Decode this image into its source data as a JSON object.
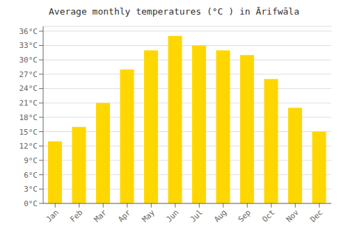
{
  "chart_data": {
    "type": "bar",
    "title": "Average monthly temperatures (°C ) in Ārifwāla",
    "categories": [
      "Jan",
      "Feb",
      "Mar",
      "Apr",
      "May",
      "Jun",
      "Jul",
      "Aug",
      "Sep",
      "Oct",
      "Nov",
      "Dec"
    ],
    "values": [
      13,
      16,
      21,
      28,
      32,
      35,
      33,
      32,
      31,
      26,
      20,
      15
    ],
    "color": "#FFD700",
    "ylim": [
      0,
      37
    ],
    "yticks": [
      {
        "value": 0,
        "label": "0°C"
      },
      {
        "value": 3,
        "label": "3°C"
      },
      {
        "value": 6,
        "label": "6°C"
      },
      {
        "value": 9,
        "label": "9°C"
      },
      {
        "value": 12,
        "label": "12°C"
      },
      {
        "value": 15,
        "label": "15°C"
      },
      {
        "value": 18,
        "label": "18°C"
      },
      {
        "value": 21,
        "label": "21°C"
      },
      {
        "value": 24,
        "label": "24°C"
      },
      {
        "value": 27,
        "label": "27°C"
      },
      {
        "value": 30,
        "label": "30°C"
      },
      {
        "value": 33,
        "label": "33°C"
      },
      {
        "value": 36,
        "label": "36°C"
      }
    ],
    "grid": true
  }
}
